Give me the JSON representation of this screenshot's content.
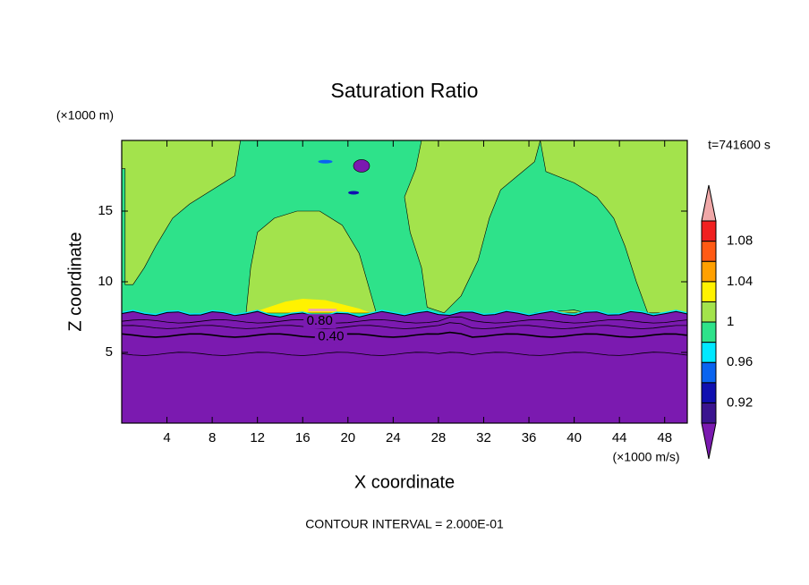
{
  "chart_data": {
    "type": "contour",
    "title": "Saturation Ratio",
    "x_label": "X coordinate",
    "y_label": "Z coordinate",
    "x_units": "(×1000 m/s)",
    "y_units": "(×1000 m)",
    "time_label": "t=741600 s",
    "footer": "CONTOUR INTERVAL = 2.000E-01",
    "xlim": [
      0,
      50
    ],
    "ylim": [
      0,
      20
    ],
    "xticks": [
      4,
      8,
      12,
      16,
      20,
      24,
      28,
      32,
      36,
      40,
      44,
      48
    ],
    "yticks": [
      5,
      10,
      15
    ],
    "colorbar": {
      "levels": [
        0.9,
        0.92,
        0.94,
        0.96,
        0.98,
        1,
        1.02,
        1.04,
        1.06,
        1.08,
        1.1
      ],
      "colors": [
        "#7b1ab0",
        "#3a148f",
        "#1010b0",
        "#0a64f0",
        "#00e8ff",
        "#2ee28a",
        "#a3e34c",
        "#fff200",
        "#ffa000",
        "#ff5a14",
        "#f02020",
        "#f0a8a8"
      ],
      "ticks": [
        0.92,
        0.96,
        1,
        1.04,
        1.08
      ]
    },
    "contour_lines": [
      {
        "value": 0.8,
        "label": "0.80"
      },
      {
        "value": 0.4,
        "label": "0.40"
      }
    ]
  }
}
